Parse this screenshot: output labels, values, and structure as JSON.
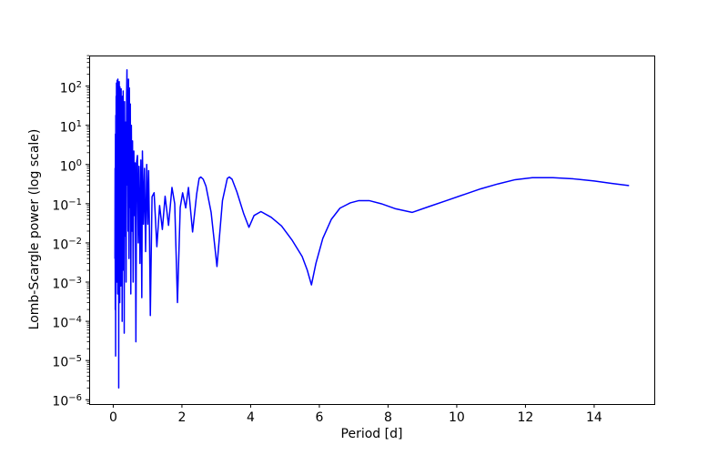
{
  "figure": {
    "background_color": "#ffffff",
    "spine_color": "#000000",
    "text_color": "#000000"
  },
  "chart_data": {
    "type": "line",
    "title": "",
    "xlabel": "Period [d]",
    "ylabel": "Lomb-Scargle power (log scale)",
    "x_scale": "linear",
    "y_scale": "log",
    "grid": false,
    "legend": null,
    "xlim": [
      -0.7,
      15.75
    ],
    "ylim": [
      7.8e-07,
      600.0
    ],
    "ylim_exp": [
      -6.11,
      2.78
    ],
    "xticks": [
      0,
      2,
      4,
      6,
      8,
      10,
      12,
      14
    ],
    "ytick_exponents": [
      2,
      1,
      0,
      -1,
      -2,
      -3,
      -4,
      -5,
      -6
    ],
    "series": [
      {
        "name": "lomb-scargle-power",
        "color": "#0000ff",
        "points": [
          [
            0.05,
            0.004
          ],
          [
            0.055,
            0.8
          ],
          [
            0.06,
            0.0002
          ],
          [
            0.065,
            6
          ],
          [
            0.07,
            1.3e-05
          ],
          [
            0.075,
            18
          ],
          [
            0.08,
            0.003
          ],
          [
            0.085,
            55
          ],
          [
            0.09,
            0.02
          ],
          [
            0.095,
            120
          ],
          [
            0.1,
            0.001
          ],
          [
            0.105,
            45
          ],
          [
            0.11,
            0.15
          ],
          [
            0.115,
            140
          ],
          [
            0.12,
            0.008
          ],
          [
            0.125,
            90
          ],
          [
            0.13,
            0.0005
          ],
          [
            0.135,
            150
          ],
          [
            0.14,
            0.05
          ],
          [
            0.145,
            60
          ],
          [
            0.15,
            0.002
          ],
          [
            0.155,
            110
          ],
          [
            0.16,
            2e-06
          ],
          [
            0.165,
            75
          ],
          [
            0.17,
            0.03
          ],
          [
            0.175,
            130
          ],
          [
            0.18,
            0.006
          ],
          [
            0.185,
            50
          ],
          [
            0.19,
            0.0003
          ],
          [
            0.195,
            95
          ],
          [
            0.2,
            0.015
          ],
          [
            0.21,
            70
          ],
          [
            0.22,
            0.0008
          ],
          [
            0.23,
            85
          ],
          [
            0.24,
            0.04
          ],
          [
            0.25,
            30
          ],
          [
            0.26,
            0.0001
          ],
          [
            0.27,
            55
          ],
          [
            0.28,
            0.01
          ],
          [
            0.29,
            75
          ],
          [
            0.3,
            0.002
          ],
          [
            0.31,
            24
          ],
          [
            0.32,
            5e-05
          ],
          [
            0.33,
            40
          ],
          [
            0.345,
            0.015
          ],
          [
            0.36,
            12
          ],
          [
            0.375,
            0.001
          ],
          [
            0.39,
            60
          ],
          [
            0.4,
            260
          ],
          [
            0.41,
            0.3
          ],
          [
            0.42,
            80
          ],
          [
            0.432,
            0.02
          ],
          [
            0.445,
            150
          ],
          [
            0.458,
            0.004
          ],
          [
            0.47,
            90
          ],
          [
            0.483,
            0.08
          ],
          [
            0.497,
            35
          ],
          [
            0.512,
            0.0005
          ],
          [
            0.528,
            10
          ],
          [
            0.545,
            0.02
          ],
          [
            0.562,
            4
          ],
          [
            0.58,
            0.001
          ],
          [
            0.6,
            2.2
          ],
          [
            0.62,
            0.05
          ],
          [
            0.64,
            1.1
          ],
          [
            0.66,
            3e-05
          ],
          [
            0.682,
            1.2
          ],
          [
            0.705,
            1.7
          ],
          [
            0.728,
            0.01
          ],
          [
            0.752,
            0.9
          ],
          [
            0.778,
            0.003
          ],
          [
            0.805,
            1.3
          ],
          [
            0.832,
            0.0004
          ],
          [
            0.85,
            2.2
          ],
          [
            0.88,
            0.03
          ],
          [
            0.91,
            0.8
          ],
          [
            0.942,
            0.006
          ],
          [
            0.975,
            1.0
          ],
          [
            1.005,
            0.03
          ],
          [
            1.03,
            0.7
          ],
          [
            1.055,
            0.02
          ],
          [
            1.08,
            0.00014
          ],
          [
            1.13,
            0.15
          ],
          [
            1.19,
            0.19
          ],
          [
            1.27,
            0.008
          ],
          [
            1.35,
            0.09
          ],
          [
            1.43,
            0.022
          ],
          [
            1.51,
            0.155
          ],
          [
            1.61,
            0.028
          ],
          [
            1.71,
            0.26
          ],
          [
            1.79,
            0.1
          ],
          [
            1.87,
            0.0003
          ],
          [
            1.95,
            0.08
          ],
          [
            2.02,
            0.19
          ],
          [
            2.11,
            0.078
          ],
          [
            2.19,
            0.26
          ],
          [
            2.31,
            0.019
          ],
          [
            2.43,
            0.18
          ],
          [
            2.5,
            0.44
          ],
          [
            2.55,
            0.48
          ],
          [
            2.62,
            0.42
          ],
          [
            2.7,
            0.28
          ],
          [
            2.85,
            0.06
          ],
          [
            3.02,
            0.0025
          ],
          [
            3.18,
            0.12
          ],
          [
            3.32,
            0.44
          ],
          [
            3.38,
            0.48
          ],
          [
            3.46,
            0.42
          ],
          [
            3.6,
            0.2
          ],
          [
            3.8,
            0.055
          ],
          [
            3.95,
            0.025
          ],
          [
            4.1,
            0.05
          ],
          [
            4.3,
            0.063
          ],
          [
            4.6,
            0.045
          ],
          [
            4.9,
            0.027
          ],
          [
            5.2,
            0.012
          ],
          [
            5.5,
            0.0045
          ],
          [
            5.65,
            0.002
          ],
          [
            5.77,
            0.00085
          ],
          [
            5.9,
            0.003
          ],
          [
            6.1,
            0.013
          ],
          [
            6.35,
            0.04
          ],
          [
            6.6,
            0.077
          ],
          [
            6.9,
            0.105
          ],
          [
            7.15,
            0.12
          ],
          [
            7.45,
            0.12
          ],
          [
            7.8,
            0.1
          ],
          [
            8.2,
            0.075
          ],
          [
            8.7,
            0.06
          ],
          [
            9.2,
            0.085
          ],
          [
            9.7,
            0.12
          ],
          [
            10.2,
            0.17
          ],
          [
            10.7,
            0.24
          ],
          [
            11.2,
            0.32
          ],
          [
            11.7,
            0.41
          ],
          [
            12.2,
            0.46
          ],
          [
            12.8,
            0.46
          ],
          [
            13.4,
            0.43
          ],
          [
            14.0,
            0.38
          ],
          [
            14.5,
            0.33
          ],
          [
            15.0,
            0.29
          ]
        ]
      }
    ]
  }
}
